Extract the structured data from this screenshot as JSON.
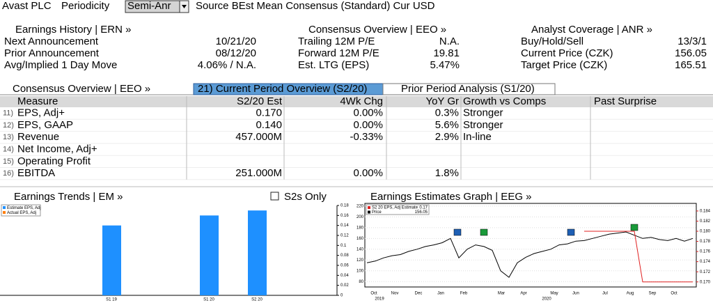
{
  "header": {
    "security": "Avast PLC",
    "periodicity_label": "Periodicity",
    "periodicity_value": "Semi-Anr",
    "source": "Source BEst Mean Consensus (Standard) Cur USD"
  },
  "summary": [
    {
      "title": "Earnings History | ERN »",
      "rows": [
        [
          "Next Announcement",
          "10/21/20"
        ],
        [
          "Prior Announcement",
          "08/12/20"
        ],
        [
          "Avg/Implied 1 Day Move",
          "4.06% / N.A."
        ]
      ]
    },
    {
      "title": "Consensus Overview | EEO »",
      "rows": [
        [
          "Trailing 12M P/E",
          "N.A."
        ],
        [
          "Forward 12M P/E",
          "19.81"
        ],
        [
          "Est. LTG (EPS)",
          "5.47%"
        ]
      ]
    },
    {
      "title": "Analyst Coverage | ANR »",
      "rows": [
        [
          "Buy/Hold/Sell",
          "13/3/1"
        ],
        [
          "Current Price (CZK)",
          "156.05"
        ],
        [
          "Target Price (CZK)",
          "165.51"
        ]
      ]
    }
  ],
  "table": {
    "title": "Consensus Overview | EEO »",
    "tabs": [
      "21) Current Period Overview (S2/20)",
      "Prior Period Analysis (S1/20)"
    ],
    "header": [
      "Measure",
      "S2/20 Est",
      "4Wk Chg",
      "YoY Gr",
      "Growth vs Comps",
      "Past Surprise"
    ],
    "rows": [
      {
        "num": "11)",
        "cells": [
          "EPS, Adj+",
          "0.170",
          "0.00%",
          "0.3%",
          "Stronger"
        ]
      },
      {
        "num": "12)",
        "cells": [
          "EPS, GAAP",
          "0.140",
          "0.00%",
          "5.6%",
          "Stronger"
        ]
      },
      {
        "num": "13)",
        "cells": [
          "Revenue",
          "457.000M",
          "-0.33%",
          "2.9%",
          "In-line"
        ]
      },
      {
        "num": "14)",
        "cells": [
          "Net Income, Adj+"
        ]
      },
      {
        "num": "15)",
        "cells": [
          "Operating Profit"
        ]
      },
      {
        "num": "16)",
        "cells": [
          "EBITDA",
          "251.000M",
          "0.00%",
          "1.8%"
        ]
      }
    ]
  },
  "earnings_trends": {
    "type": "bar",
    "title": "Earnings Trends | EM »",
    "option": "S2s Only",
    "legend": [
      {
        "name": "Estimate EPS, Adj",
        "color": "#1e90ff"
      },
      {
        "name": "Actual EPS, Adj",
        "color": "#ff7f0e"
      }
    ],
    "categories": [
      "S1 19",
      "S1 20",
      "S2 20"
    ],
    "values": [
      0.14,
      0.16,
      0.17
    ],
    "color": "#1e90ff",
    "ylim": [
      0,
      0.18
    ],
    "yticks": [
      0,
      0.02,
      0.04,
      0.06,
      0.08,
      0.1,
      0.12,
      0.14,
      0.16,
      0.18
    ]
  },
  "estimates_graph": {
    "type": "line",
    "title": "Earnings Estimates Graph | EEG »",
    "legend": [
      {
        "name": "S2 20 EPS, Adj Estimate",
        "value": "0.17",
        "color": "#e02020"
      },
      {
        "name": "Price",
        "value": "156.05",
        "color": "#000000"
      }
    ],
    "months": [
      "Oct",
      "Nov",
      "Dec",
      "Jan",
      "Feb",
      "Mar",
      "Apr",
      "May",
      "Jun",
      "Jul",
      "Aug",
      "Sep",
      "Oct"
    ],
    "years": [
      "2019",
      "2020"
    ],
    "price": [
      115,
      118,
      124,
      128,
      130,
      136,
      140,
      145,
      148,
      152,
      160,
      124,
      140,
      148,
      145,
      138,
      100,
      88,
      115,
      125,
      132,
      136,
      140,
      148,
      150,
      155,
      156,
      160,
      164,
      168,
      170,
      172,
      166,
      160,
      162,
      158,
      156,
      160,
      155,
      160
    ],
    "estimate": [
      null,
      null,
      null,
      null,
      null,
      null,
      null,
      null,
      null,
      null,
      null,
      null,
      null,
      null,
      null,
      null,
      null,
      null,
      null,
      null,
      null,
      null,
      null,
      null,
      null,
      null,
      0.18,
      0.18,
      0.18,
      0.18,
      0.18,
      0.18,
      0.18,
      0.17,
      0.17,
      0.17,
      0.17,
      0.17,
      0.17,
      0.17
    ],
    "ylim": [
      70,
      225
    ],
    "yticks": [
      80,
      100,
      120,
      140,
      160,
      180,
      200,
      220
    ],
    "y2lim": [
      0.169,
      0.1855
    ],
    "y2ticks": [
      {
        "value": 0.17,
        "label": "0.170"
      },
      0.172,
      0.174,
      0.176,
      0.178,
      {
        "value": 0.18,
        "label": "0.180"
      },
      0.182,
      0.184
    ]
  }
}
